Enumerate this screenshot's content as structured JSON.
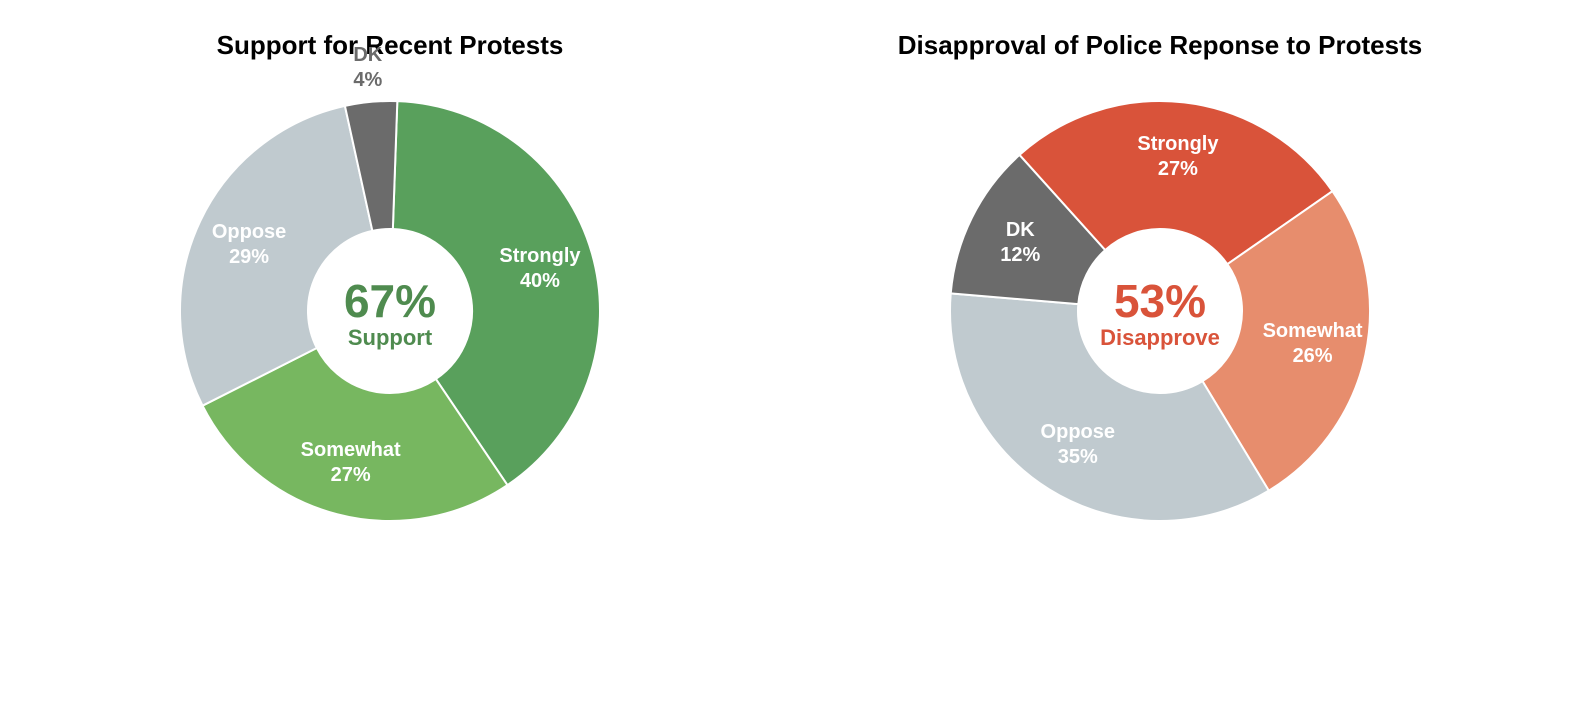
{
  "chart1": {
    "type": "donut",
    "title": "Support for Recent Protests",
    "center_percent": "67%",
    "center_label": "Support",
    "center_color": "#4f8b4f",
    "outer_radius": 210,
    "inner_radius": 82,
    "background_color": "#ffffff",
    "label_fontsize": 20,
    "title_fontsize": 26,
    "slices": [
      {
        "label_line1": "Strongly",
        "label_line2": "40%",
        "value": 40,
        "color": "#59a05c"
      },
      {
        "label_line1": "Somewhat",
        "label_line2": "27%",
        "value": 27,
        "color": "#77b760"
      },
      {
        "label_line1": "Oppose",
        "label_line2": "29%",
        "value": 29,
        "color": "#c0cacf"
      },
      {
        "label_line1": "DK",
        "label_line2": "4%",
        "value": 4,
        "color": "#6b6b6b",
        "outside": true
      }
    ]
  },
  "chart2": {
    "type": "donut",
    "title": "Disapproval of Police Reponse to Protests",
    "center_percent": "53%",
    "center_label": "Disapprove",
    "center_color": "#d9533a",
    "outer_radius": 210,
    "inner_radius": 82,
    "background_color": "#ffffff",
    "label_fontsize": 20,
    "title_fontsize": 26,
    "slices": [
      {
        "label_line1": "Strongly",
        "label_line2": "27%",
        "value": 27,
        "color": "#d9533a"
      },
      {
        "label_line1": "Somewhat",
        "label_line2": "26%",
        "value": 26,
        "color": "#e78d6d"
      },
      {
        "label_line1": "Oppose",
        "label_line2": "35%",
        "value": 35,
        "color": "#c0cacf"
      },
      {
        "label_line1": "DK",
        "label_line2": "12%",
        "value": 12,
        "color": "#6b6b6b"
      }
    ]
  }
}
